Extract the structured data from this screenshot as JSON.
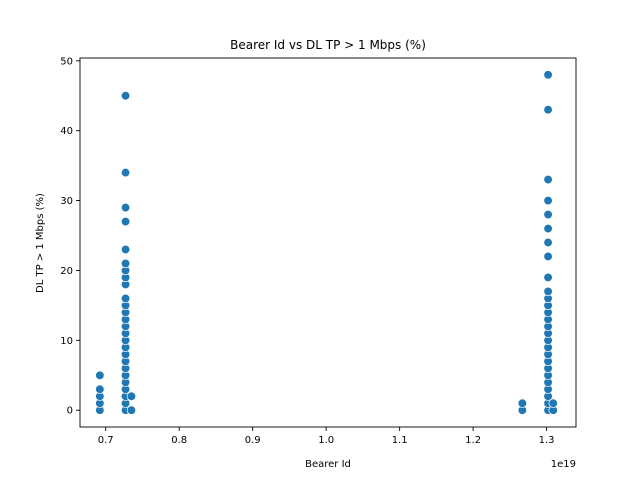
{
  "chart_data": {
    "type": "scatter",
    "title": "Bearer Id vs DL TP > 1 Mbps (%)",
    "xlabel": "Bearer Id",
    "ylabel": "DL TP > 1 Mbps (%)",
    "x_offset_label": "1e19",
    "xlim": [
      0.665,
      1.34
    ],
    "ylim": [
      -2.4,
      50.4
    ],
    "xticks": [
      0.7,
      0.8,
      0.9,
      1.0,
      1.1,
      1.2,
      1.3
    ],
    "xtick_labels": [
      "0.7",
      "0.8",
      "0.9",
      "1.0",
      "1.1",
      "1.2",
      "1.3"
    ],
    "yticks": [
      0,
      10,
      20,
      30,
      40,
      50
    ],
    "ytick_labels": [
      "0",
      "10",
      "20",
      "30",
      "40",
      "50"
    ],
    "marker_color": "#1f77b4",
    "grid": false,
    "points": [
      {
        "x": 0.692,
        "y": 0
      },
      {
        "x": 0.692,
        "y": 1
      },
      {
        "x": 0.692,
        "y": 2
      },
      {
        "x": 0.692,
        "y": 3
      },
      {
        "x": 0.692,
        "y": 5
      },
      {
        "x": 0.727,
        "y": 0
      },
      {
        "x": 0.727,
        "y": 1
      },
      {
        "x": 0.727,
        "y": 2
      },
      {
        "x": 0.727,
        "y": 3
      },
      {
        "x": 0.727,
        "y": 4
      },
      {
        "x": 0.727,
        "y": 5
      },
      {
        "x": 0.727,
        "y": 6
      },
      {
        "x": 0.727,
        "y": 7
      },
      {
        "x": 0.727,
        "y": 8
      },
      {
        "x": 0.727,
        "y": 9
      },
      {
        "x": 0.727,
        "y": 10
      },
      {
        "x": 0.727,
        "y": 11
      },
      {
        "x": 0.727,
        "y": 12
      },
      {
        "x": 0.727,
        "y": 13
      },
      {
        "x": 0.727,
        "y": 14
      },
      {
        "x": 0.727,
        "y": 15
      },
      {
        "x": 0.727,
        "y": 16
      },
      {
        "x": 0.727,
        "y": 18
      },
      {
        "x": 0.727,
        "y": 19
      },
      {
        "x": 0.727,
        "y": 20
      },
      {
        "x": 0.727,
        "y": 21
      },
      {
        "x": 0.727,
        "y": 23
      },
      {
        "x": 0.727,
        "y": 27
      },
      {
        "x": 0.727,
        "y": 29
      },
      {
        "x": 0.727,
        "y": 34
      },
      {
        "x": 0.727,
        "y": 45
      },
      {
        "x": 0.735,
        "y": 0
      },
      {
        "x": 0.735,
        "y": 2
      },
      {
        "x": 1.267,
        "y": 0
      },
      {
        "x": 1.267,
        "y": 1
      },
      {
        "x": 1.302,
        "y": 0
      },
      {
        "x": 1.302,
        "y": 1
      },
      {
        "x": 1.302,
        "y": 2
      },
      {
        "x": 1.302,
        "y": 3
      },
      {
        "x": 1.302,
        "y": 4
      },
      {
        "x": 1.302,
        "y": 5
      },
      {
        "x": 1.302,
        "y": 6
      },
      {
        "x": 1.302,
        "y": 7
      },
      {
        "x": 1.302,
        "y": 8
      },
      {
        "x": 1.302,
        "y": 9
      },
      {
        "x": 1.302,
        "y": 10
      },
      {
        "x": 1.302,
        "y": 11
      },
      {
        "x": 1.302,
        "y": 12
      },
      {
        "x": 1.302,
        "y": 13
      },
      {
        "x": 1.302,
        "y": 14
      },
      {
        "x": 1.302,
        "y": 15
      },
      {
        "x": 1.302,
        "y": 16
      },
      {
        "x": 1.302,
        "y": 17
      },
      {
        "x": 1.302,
        "y": 19
      },
      {
        "x": 1.302,
        "y": 22
      },
      {
        "x": 1.302,
        "y": 24
      },
      {
        "x": 1.302,
        "y": 26
      },
      {
        "x": 1.302,
        "y": 28
      },
      {
        "x": 1.302,
        "y": 30
      },
      {
        "x": 1.302,
        "y": 33
      },
      {
        "x": 1.302,
        "y": 43
      },
      {
        "x": 1.302,
        "y": 48
      },
      {
        "x": 1.309,
        "y": 0
      },
      {
        "x": 1.309,
        "y": 1
      }
    ]
  }
}
